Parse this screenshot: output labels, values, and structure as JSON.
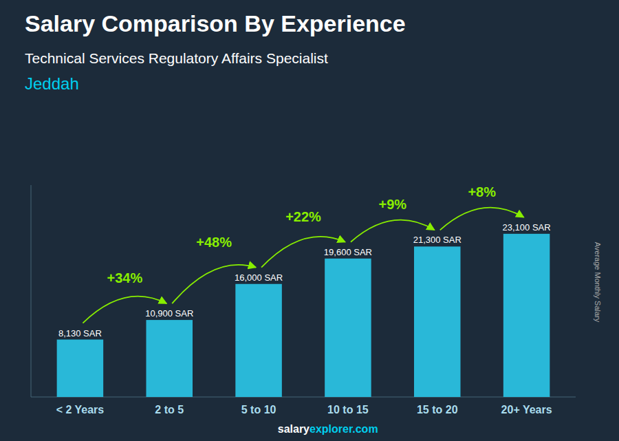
{
  "chart_data": {
    "type": "bar",
    "title": "Salary Comparison By Experience",
    "subtitle": [
      "Technical Services Regulatory Affairs Specialist",
      "Jeddah"
    ],
    "ylabel": "Average Monthly Salary",
    "categories": [
      "< 2 Years",
      "2 to 5",
      "5 to 10",
      "10 to 15",
      "15 to 20",
      "20+ Years"
    ],
    "values": [
      8130,
      10900,
      16000,
      19600,
      21300,
      23100
    ],
    "value_labels": [
      "8,130 SAR",
      "10,900 SAR",
      "16,000 SAR",
      "19,600 SAR",
      "21,300 SAR",
      "23,100 SAR"
    ],
    "annotations": [
      "+34%",
      "+48%",
      "+22%",
      "+9%",
      "+8%"
    ],
    "footer": [
      "salary",
      "explorer.com"
    ],
    "color": "#29b8d8",
    "ylim": [
      0,
      30000
    ],
    "tick_labels": "x",
    "data_labels": true,
    "grid": false
  }
}
